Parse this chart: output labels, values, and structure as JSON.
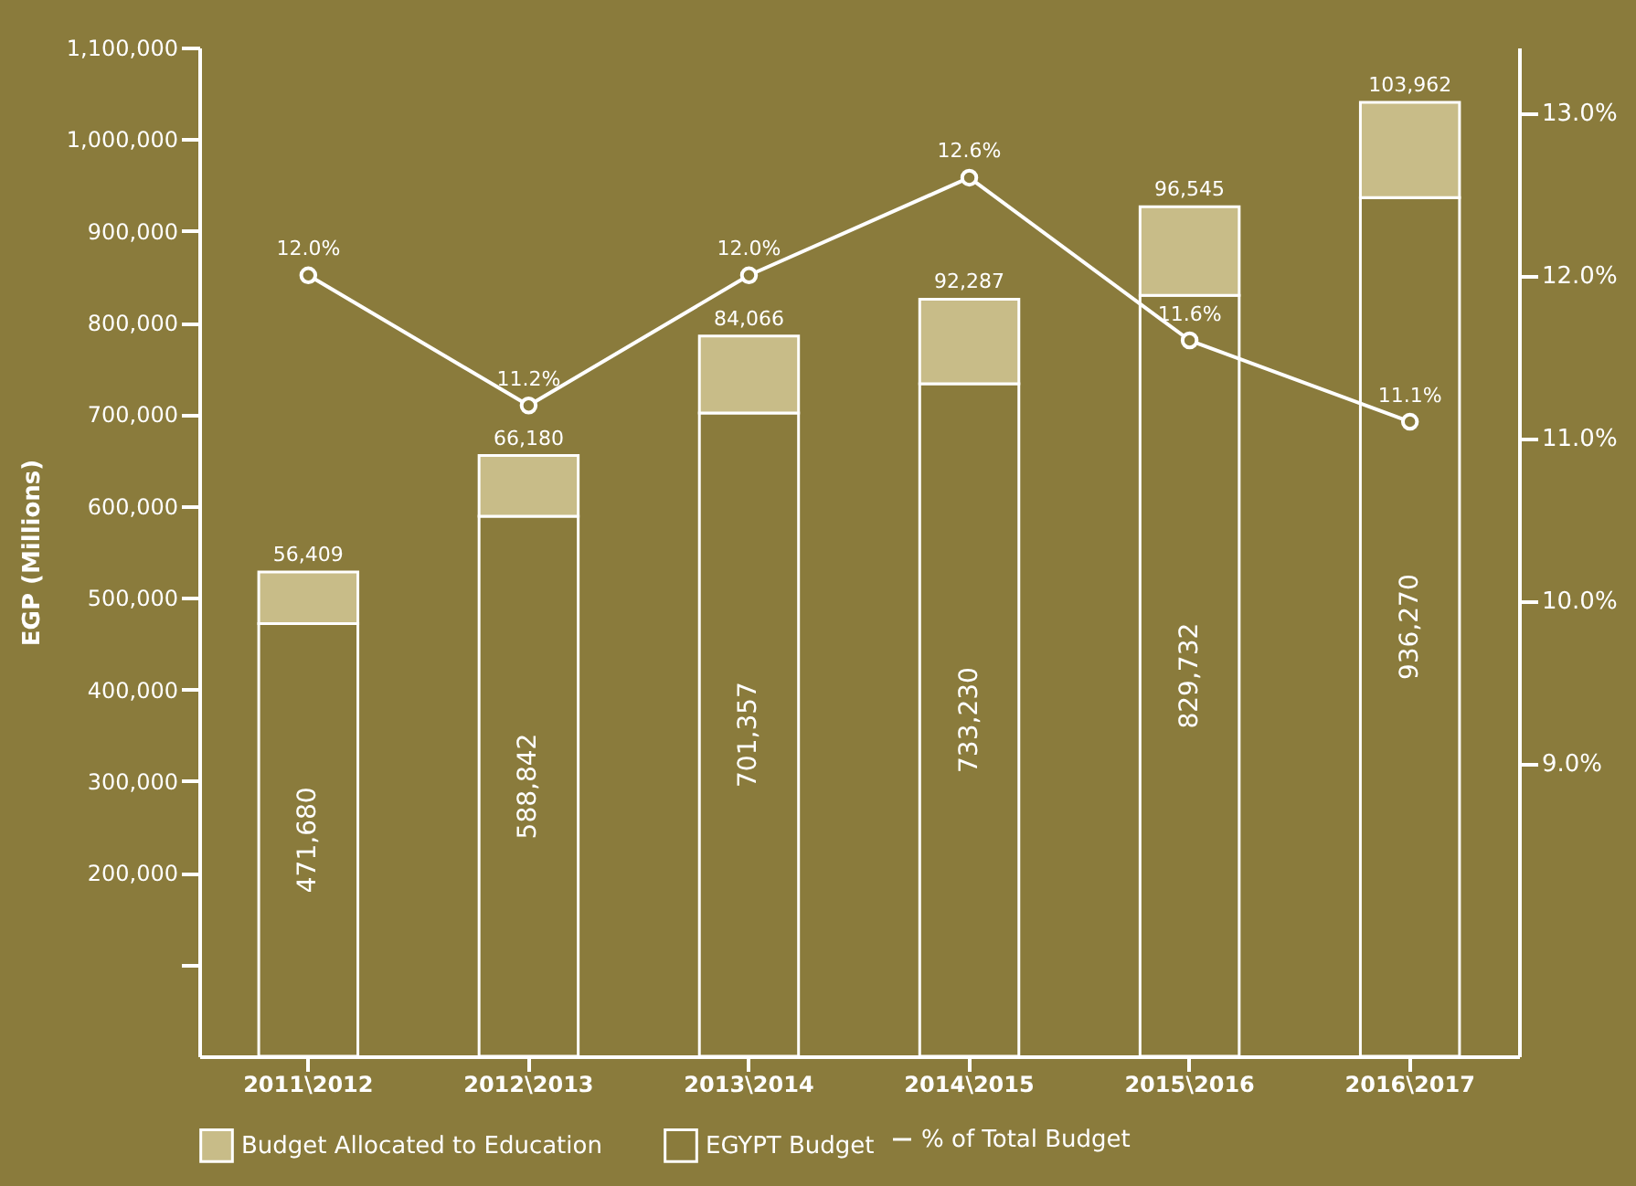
{
  "chart_data": {
    "type": "bar",
    "stacked": true,
    "ylabel": "EGP (Millions)",
    "categories": [
      "2011\\2012",
      "2012\\2013",
      "2013\\2014",
      "2014\\2015",
      "2015\\2016",
      "2016\\2017"
    ],
    "series": [
      {
        "name": "EGYPT Budget",
        "color": "#8a7b3c",
        "values": [
          471680,
          588842,
          701357,
          733230,
          829732,
          936270
        ],
        "value_labels": [
          "471,680",
          "588,842",
          "701,357",
          "733,230",
          "829,732",
          "936,270"
        ]
      },
      {
        "name": "Budget Allocated to Education",
        "color": "#c8bc88",
        "values": [
          56409,
          66180,
          84066,
          92287,
          96545,
          103962
        ],
        "value_labels": [
          "56,409",
          "66,180",
          "84,066",
          "92,287",
          "96,545",
          "103,962"
        ]
      },
      {
        "name": "% of Total Budget",
        "type": "line",
        "axis": "y2",
        "color": "#ffffff",
        "values": [
          12.0,
          11.2,
          12.0,
          12.6,
          11.6,
          11.1
        ],
        "value_labels": [
          "12.0%",
          "11.2%",
          "12.0%",
          "12.6%",
          "11.6%",
          "11.1%"
        ]
      }
    ],
    "marker": "circle",
    "line_style": "solid",
    "legend": "bottom",
    "grid": false,
    "ylim": [
      0,
      1100000
    ],
    "yticks": [
      {
        "value": 100000,
        "label": null
      },
      {
        "value": 200000,
        "label": "200,000"
      },
      {
        "value": 300000,
        "label": "300,000"
      },
      {
        "value": 400000,
        "label": "400,000"
      },
      {
        "value": 500000,
        "label": "500,000"
      },
      {
        "value": 600000,
        "label": "600,000"
      },
      {
        "value": 700000,
        "label": "700,000"
      },
      {
        "value": 800000,
        "label": "800,000"
      },
      {
        "value": 900000,
        "label": "900,000"
      },
      {
        "value": 1000000,
        "label": "1,000,000"
      },
      {
        "value": 1100000,
        "label": "1,100,000"
      }
    ],
    "y2lim": [
      7.2,
      13.4
    ],
    "y2ticks": [
      {
        "value": 9,
        "label": "9.0%"
      },
      {
        "value": 10,
        "label": "10.0%"
      },
      {
        "value": 11,
        "label": "11.0%"
      },
      {
        "value": 12,
        "label": "12.0%"
      },
      {
        "value": 13,
        "label": "13.0%"
      }
    ]
  }
}
